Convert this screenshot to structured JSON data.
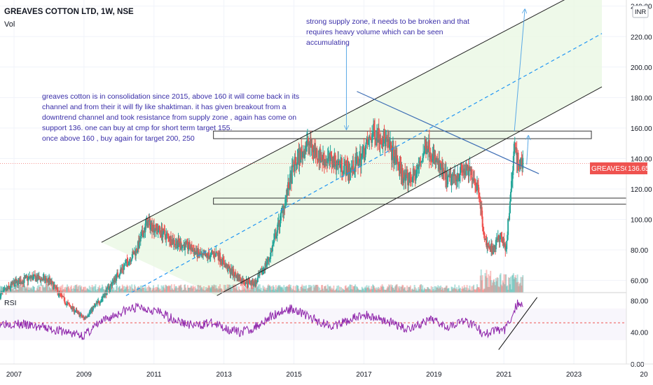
{
  "header": {
    "title": "GREAVES COTTON LTD, 1W, NSE",
    "vol_label": "Vol",
    "currency": "INR"
  },
  "price_tag": {
    "symbol": "GREAVESCOT",
    "value": "136.65"
  },
  "annotations": {
    "supply_note": [
      "strong supply zone, it needs to be broken and that",
      "requires heavy volume which can be seen",
      "accumulating"
    ],
    "analysis_note": [
      "greaves cotton is in consolidation since 2015, above 160 it will come back in its",
      "channel and from their it will fly like shaktiman. it has given breakout from a",
      "downtrend channel and took resistance from supply zone , again has come on",
      "support 136. one can buy at cmp for  short  term target 155.",
      "once above 160 , buy again for target 200, 250"
    ]
  },
  "rsi_panel": {
    "label": "RSI"
  },
  "colors": {
    "up": "#26a69a",
    "down": "#ef5350",
    "channel": "#222222",
    "midline": "#2196f3",
    "trend": "#3f6fb5",
    "rsi": "#8e24aa",
    "arrow": "#5aa9e6",
    "text": "#3a2ea8",
    "price_tag": "#ef5350"
  },
  "chart_data": [
    {
      "type": "candlestick",
      "title": "GREAVES COTTON LTD, 1W, NSE",
      "x_ticks": [
        "2007",
        "2009",
        "2011",
        "2013",
        "2015",
        "2017",
        "2019",
        "2021",
        "2023",
        "20"
      ],
      "y_ticks": [
        "240.00",
        "220.00",
        "200.00",
        "180.00",
        "160.00",
        "140.00",
        "120.00",
        "100.00",
        "80.00",
        "60.00"
      ],
      "xlim": [
        2006.6,
        2024.5
      ],
      "ylim": [
        52,
        244
      ],
      "last_price": 136.65,
      "price_path": [
        [
          2006.6,
          50
        ],
        [
          2007.0,
          58
        ],
        [
          2007.5,
          62
        ],
        [
          2008.0,
          60
        ],
        [
          2008.5,
          45
        ],
        [
          2009.0,
          35
        ],
        [
          2009.5,
          48
        ],
        [
          2010.0,
          65
        ],
        [
          2010.5,
          80
        ],
        [
          2010.8,
          98
        ],
        [
          2011.2,
          92
        ],
        [
          2011.6,
          85
        ],
        [
          2012.0,
          82
        ],
        [
          2012.4,
          75
        ],
        [
          2012.8,
          78
        ],
        [
          2013.1,
          68
        ],
        [
          2013.5,
          60
        ],
        [
          2013.9,
          58
        ],
        [
          2014.3,
          75
        ],
        [
          2014.7,
          108
        ],
        [
          2015.0,
          135
        ],
        [
          2015.4,
          150
        ],
        [
          2015.8,
          140
        ],
        [
          2016.2,
          138
        ],
        [
          2016.6,
          132
        ],
        [
          2016.9,
          140
        ],
        [
          2017.3,
          158
        ],
        [
          2017.6,
          152
        ],
        [
          2017.9,
          140
        ],
        [
          2018.2,
          125
        ],
        [
          2018.5,
          130
        ],
        [
          2018.8,
          150
        ],
        [
          2019.0,
          140
        ],
        [
          2019.4,
          125
        ],
        [
          2019.8,
          132
        ],
        [
          2020.1,
          130
        ],
        [
          2020.3,
          118
        ],
        [
          2020.45,
          85
        ],
        [
          2020.7,
          80
        ],
        [
          2020.9,
          90
        ],
        [
          2021.05,
          80
        ],
        [
          2021.2,
          118
        ],
        [
          2021.3,
          148
        ],
        [
          2021.45,
          135
        ],
        [
          2021.55,
          137
        ]
      ],
      "rsi": {
        "ylim": [
          0,
          90
        ],
        "y_ticks": [
          "80.00",
          "40.00",
          "0.00"
        ],
        "dashed_level": 52,
        "path": [
          [
            2006.6,
            52
          ],
          [
            2007.2,
            50
          ],
          [
            2007.8,
            46
          ],
          [
            2008.3,
            42
          ],
          [
            2008.7,
            38
          ],
          [
            2009.0,
            36
          ],
          [
            2009.4,
            50
          ],
          [
            2009.8,
            60
          ],
          [
            2010.2,
            68
          ],
          [
            2010.6,
            72
          ],
          [
            2011.0,
            68
          ],
          [
            2011.4,
            60
          ],
          [
            2011.8,
            52
          ],
          [
            2012.2,
            48
          ],
          [
            2012.6,
            52
          ],
          [
            2013.0,
            46
          ],
          [
            2013.4,
            40
          ],
          [
            2013.8,
            44
          ],
          [
            2014.2,
            56
          ],
          [
            2014.6,
            66
          ],
          [
            2015.0,
            70
          ],
          [
            2015.4,
            60
          ],
          [
            2015.8,
            52
          ],
          [
            2016.2,
            48
          ],
          [
            2016.6,
            56
          ],
          [
            2017.0,
            62
          ],
          [
            2017.4,
            58
          ],
          [
            2017.8,
            52
          ],
          [
            2018.2,
            44
          ],
          [
            2018.6,
            50
          ],
          [
            2019.0,
            56
          ],
          [
            2019.4,
            48
          ],
          [
            2019.8,
            54
          ],
          [
            2020.2,
            50
          ],
          [
            2020.4,
            36
          ],
          [
            2020.6,
            40
          ],
          [
            2020.8,
            44
          ],
          [
            2021.0,
            42
          ],
          [
            2021.15,
            52
          ],
          [
            2021.3,
            70
          ],
          [
            2021.4,
            76
          ],
          [
            2021.55,
            72
          ]
        ]
      }
    }
  ]
}
